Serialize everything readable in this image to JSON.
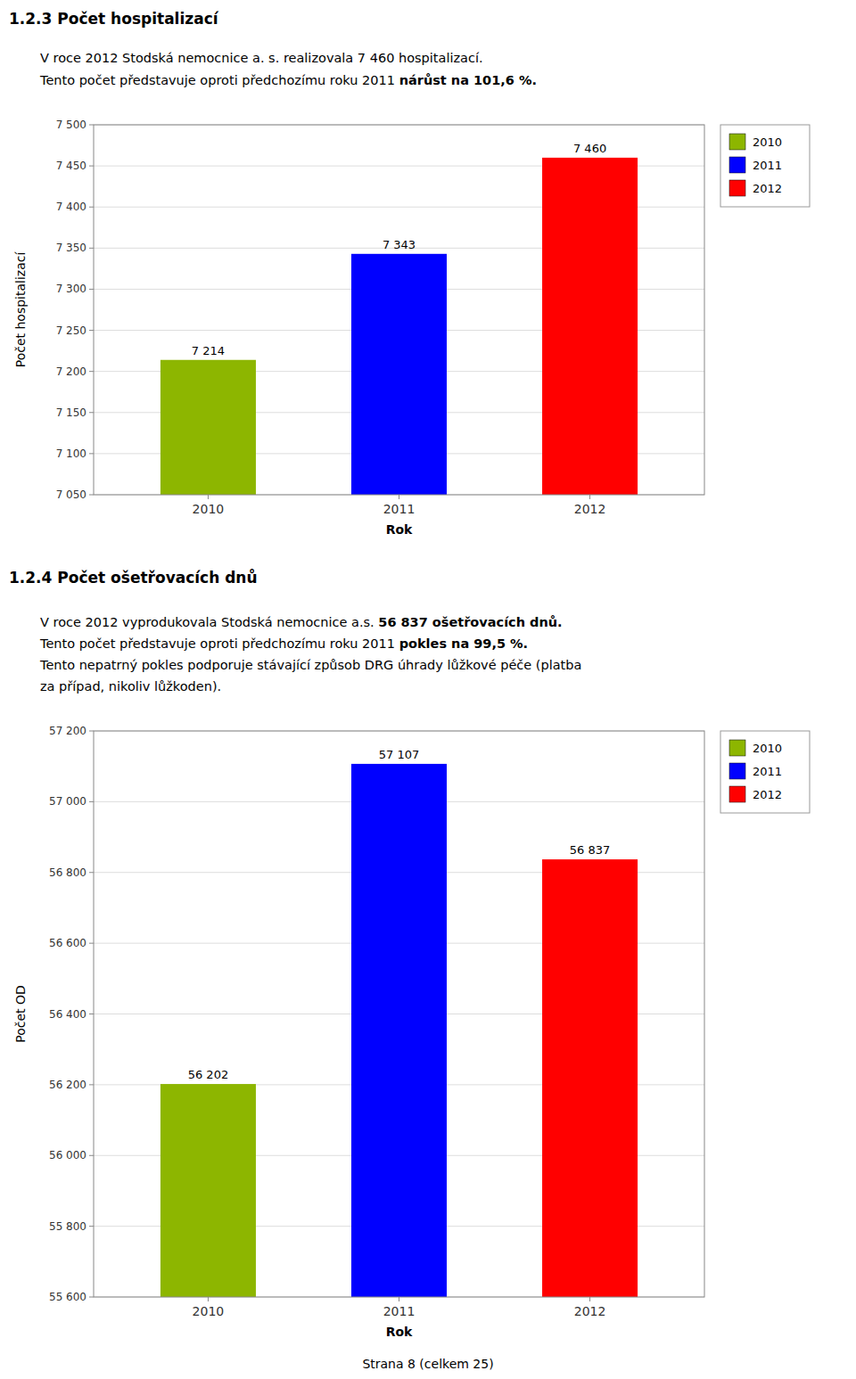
{
  "sections": [
    {
      "title": "1.2.3 Počet hospitalizací",
      "lines": [
        [
          {
            "text": "V roce 2012 Stodská nemocnice a. s. realizovala 7 460 hospitalizací.",
            "bold": false
          }
        ],
        [
          {
            "text": "Tento počet představuje oproti předchozímu roku 2011 ",
            "bold": false
          },
          {
            "text": "nárůst na 101,6 %.",
            "bold": true
          }
        ]
      ]
    },
    {
      "title": "1.2.4 Počet ošetřovacích dnů",
      "lines": [
        [
          {
            "text": "V roce 2012 vyprodukovala Stodská nemocnice a.s. ",
            "bold": false
          },
          {
            "text": "56 837 ošetřovacích dnů.",
            "bold": true
          }
        ],
        [
          {
            "text": "Tento počet představuje oproti předchozímu roku 2011 ",
            "bold": false
          },
          {
            "text": "pokles na 99,5 %.",
            "bold": true
          }
        ],
        [
          {
            "text": "Tento nepatrný pokles podporuje stávající způsob DRG úhrady lůžkové péče (platba",
            "bold": false
          }
        ],
        [
          {
            "text": "za případ, nikoliv lůžkoden).",
            "bold": false
          }
        ]
      ]
    }
  ],
  "footer": "Strana 8 (celkem 25)",
  "chart_data": [
    {
      "type": "bar",
      "categories": [
        "2010",
        "2011",
        "2012"
      ],
      "values": [
        7214,
        7343,
        7460
      ],
      "value_labels": [
        "7 214",
        "7 343",
        "7 460"
      ],
      "colors": [
        "#8DB600",
        "#0000FF",
        "#FF0000"
      ],
      "ylabel": "Počet hospitalizací",
      "xlabel": "Rok",
      "ylim": [
        7050,
        7500
      ],
      "yticks": [
        {
          "value": 7050,
          "label": "7 050"
        },
        {
          "value": 7100,
          "label": "7 100"
        },
        {
          "value": 7150,
          "label": "7 150"
        },
        {
          "value": 7200,
          "label": "7 200"
        },
        {
          "value": 7250,
          "label": "7 250"
        },
        {
          "value": 7300,
          "label": "7 300"
        },
        {
          "value": 7350,
          "label": "7 350"
        },
        {
          "value": 7400,
          "label": "7 400"
        },
        {
          "value": 7450,
          "label": "7 450"
        },
        {
          "value": 7500,
          "label": "7 500"
        }
      ],
      "grid": true,
      "data_labels": true,
      "legend": "upper right"
    },
    {
      "type": "bar",
      "categories": [
        "2010",
        "2011",
        "2012"
      ],
      "values": [
        56202,
        57107,
        56837
      ],
      "value_labels": [
        "56 202",
        "57 107",
        "56 837"
      ],
      "colors": [
        "#8DB600",
        "#0000FF",
        "#FF0000"
      ],
      "ylabel": "Počet OD",
      "xlabel": "Rok",
      "ylim": [
        55600,
        57200
      ],
      "yticks": [
        {
          "value": 55600,
          "label": "55 600"
        },
        {
          "value": 55800,
          "label": "55 800"
        },
        {
          "value": 56000,
          "label": "56 000"
        },
        {
          "value": 56200,
          "label": "56 200"
        },
        {
          "value": 56400,
          "label": "56 400"
        },
        {
          "value": 56600,
          "label": "56 600"
        },
        {
          "value": 56800,
          "label": "56 800"
        },
        {
          "value": 57000,
          "label": "57 000"
        },
        {
          "value": 57200,
          "label": "57 200"
        }
      ],
      "grid": true,
      "data_labels": true,
      "legend": "upper right"
    }
  ]
}
